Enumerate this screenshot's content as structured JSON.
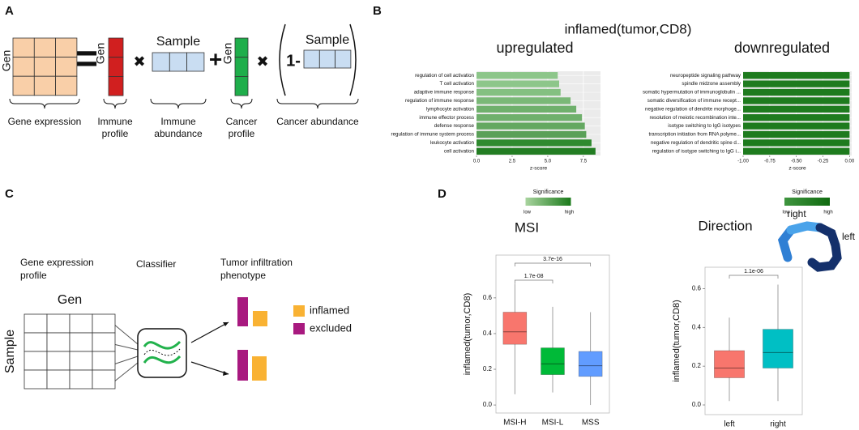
{
  "panel_labels": [
    "A",
    "B",
    "C",
    "D"
  ],
  "panel_a": {
    "gene_matrix_label": "Gen",
    "gene_expression": "Gene expression",
    "operator_equals": "=",
    "operator_times": "✖",
    "operator_plus": "+",
    "immune_profile_label": "Gen",
    "immune_profile": [
      "Immune",
      "profile"
    ],
    "immune_sample_label": "Sample",
    "immune_abundance": [
      "Immune",
      "abundance"
    ],
    "cancer_profile_label": "Gen",
    "cancer_profile": [
      "Cancer",
      "profile"
    ],
    "cancer_sample_label": "Sample",
    "one_minus": "1-",
    "cancer_abundance": "Cancer abundance"
  },
  "panel_b": {
    "title": "inflamed(tumor,CD8)"
  },
  "panel_c": {
    "gene_expression_profile": [
      "Gene expression",
      "profile"
    ],
    "classifier": "Classifier",
    "phenotype": [
      "Tumor infiltration",
      "phenotype"
    ],
    "matrix_col_label": "Gen",
    "matrix_row_label": "Sample",
    "legend": [
      {
        "name": "inflamed",
        "color": "#f9b233"
      },
      {
        "name": "excluded",
        "color": "#a8197f"
      }
    ]
  },
  "chart_data": [
    {
      "type": "hbar",
      "title": "upregulated",
      "categories": [
        "regulation of cell activation",
        "T cell activation",
        "adaptive immune response",
        "regulation of immune response",
        "lymphocyte activation",
        "immune effector process",
        "defense response",
        "regulation of immune system process",
        "leukocyte activation",
        "cell activation"
      ],
      "values": [
        5.7,
        5.8,
        5.9,
        6.6,
        7.0,
        7.4,
        7.6,
        7.7,
        8.07,
        8.35
      ],
      "colors": [
        "#8dc68a",
        "#8dc68a",
        "#84c081",
        "#7ab877",
        "#6fb06c",
        "#6fb06c",
        "#64a861",
        "#5aa058",
        "#2f8a2f",
        "#237d23"
      ],
      "xlabel": "z-score",
      "xlim": [
        0,
        8.7
      ],
      "xticks": [
        {
          "value": 0,
          "label": "0.0"
        },
        {
          "value": 2.5,
          "label": "2.5"
        },
        {
          "value": 5,
          "label": "5.0"
        },
        {
          "value": 7.5,
          "label": "7.5"
        }
      ],
      "grid": true,
      "legend": {
        "title": "Significance",
        "low": "low",
        "high": "high",
        "colors": [
          "#a9d49f",
          "#1b7a1b"
        ]
      }
    },
    {
      "type": "hbar",
      "title": "downregulated",
      "categories": [
        "neuropeptide signaling pathway",
        "spindle midzone assembly",
        "somatic hypermutation of immunoglobulin ...",
        "somatic diversification of immune recept...",
        "negative regulation of dendrite morphoge...",
        "resolution of meiotic recombination inte...",
        "isotype switching to IgG isotypes",
        "transcription initiation from RNA polyme...",
        "negative regulation of dendritic spine d...",
        "regulation of isotype switching to IgG i..."
      ],
      "values": [
        -1,
        -1,
        -1,
        -1,
        -1,
        -1,
        -1,
        -1,
        -1,
        -1
      ],
      "colors": [
        "#1e7b1e",
        "#1e7b1e",
        "#1e7b1e",
        "#1e7b1e",
        "#1e7b1e",
        "#1e7b1e",
        "#1e7b1e",
        "#1e7b1e",
        "#1e7b1e",
        "#1e7b1e"
      ],
      "xlabel": "z-score",
      "xlim": [
        -1,
        0.02
      ],
      "xticks": [
        {
          "value": -1,
          "label": "-1.00"
        },
        {
          "value": -0.75,
          "label": "-0.75"
        },
        {
          "value": -0.5,
          "label": "-0.50"
        },
        {
          "value": -0.25,
          "label": "-0.25"
        },
        {
          "value": 0,
          "label": "0.00"
        }
      ],
      "grid": true,
      "legend": {
        "title": "Significance",
        "low": "low",
        "high": "high",
        "colors": [
          "#3f953f",
          "#0f6a0f"
        ]
      }
    },
    {
      "type": "box",
      "title": "MSI",
      "ylabel": "inflamed(tumor,CD8)",
      "categories": [
        "MSI-H",
        "MSI-L",
        "MSS"
      ],
      "colors": [
        "#f8766d",
        "#00ba38",
        "#619cff"
      ],
      "low": [
        0.06,
        0.07,
        0.0
      ],
      "q1": [
        0.34,
        0.17,
        0.16
      ],
      "median": [
        0.41,
        0.23,
        0.22
      ],
      "q3": [
        0.52,
        0.32,
        0.3
      ],
      "high": [
        0.68,
        0.55,
        0.52
      ],
      "ylim": [
        -0.045,
        0.84
      ],
      "yticks": [
        {
          "value": 0,
          "label": "0.0"
        },
        0.2,
        0.4,
        0.6
      ],
      "comparisons": [
        {
          "groups": [
            "MSI-H",
            "MSI-L"
          ],
          "label": "1.7e-08"
        },
        {
          "groups": [
            "MSI-H",
            "MSS"
          ],
          "label": "3.7e-16"
        }
      ]
    },
    {
      "type": "box",
      "title": "Direction",
      "ylabel": "inflamed(tumor,CD8)",
      "categories": [
        "left",
        "right"
      ],
      "colors": [
        "#f8766d",
        "#00bfc4"
      ],
      "low": [
        0.02,
        0.02
      ],
      "q1": [
        0.14,
        0.19
      ],
      "median": [
        0.19,
        0.27
      ],
      "q3": [
        0.28,
        0.39
      ],
      "high": [
        0.45,
        0.62
      ],
      "ylim": [
        -0.05,
        0.71
      ],
      "yticks": [
        {
          "value": 0,
          "label": "0.0"
        },
        0.2,
        0.4,
        0.6
      ],
      "comparisons": [
        {
          "groups": [
            "left",
            "right"
          ],
          "label": "1.1e-06"
        }
      ],
      "annotations": [
        "right",
        "left"
      ]
    }
  ]
}
